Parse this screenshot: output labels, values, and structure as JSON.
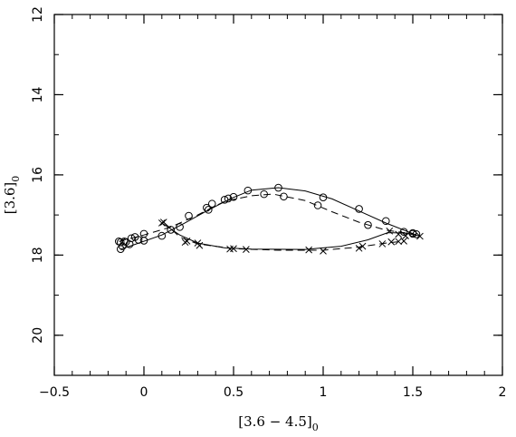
{
  "chart_data": {
    "type": "line",
    "title": "",
    "xlabel": "[3.6 − 4.5]",
    "xlabel_sub": "0",
    "ylabel": "[3.6]",
    "ylabel_sub": "0",
    "xlim": [
      -0.5,
      2
    ],
    "ylim": [
      21,
      12
    ],
    "y_inverted": true,
    "x_ticks_major": [
      -0.5,
      0,
      0.5,
      1,
      1.5,
      2
    ],
    "x_tick_labels": [
      "−0.5",
      "0",
      "0.5",
      "1",
      "1.5",
      "2"
    ],
    "y_ticks_major": [
      12,
      14,
      16,
      18,
      20
    ],
    "y_tick_labels": [
      "12",
      "14",
      "16",
      "18",
      "20"
    ],
    "x_ticks_minor_step": 0.1,
    "y_ticks_minor_step": 1,
    "grid": false,
    "series": [
      {
        "marker": "circle",
        "line_style": "solid",
        "points": [
          [
            -0.13,
            17.85
          ],
          [
            -0.12,
            17.78
          ],
          [
            -0.08,
            17.73
          ],
          [
            -0.07,
            17.58
          ],
          [
            -0.03,
            17.62
          ],
          [
            0.0,
            17.64
          ],
          [
            0.1,
            17.52
          ],
          [
            0.2,
            17.3
          ],
          [
            0.25,
            17.02
          ],
          [
            0.35,
            16.82
          ],
          [
            0.38,
            16.72
          ],
          [
            0.47,
            16.59
          ],
          [
            0.5,
            16.55
          ],
          [
            0.58,
            16.39
          ],
          [
            0.75,
            16.32
          ],
          [
            1.0,
            16.56
          ],
          [
            1.2,
            16.85
          ],
          [
            1.35,
            17.15
          ],
          [
            1.5,
            17.45
          ],
          [
            1.52,
            17.48
          ]
        ],
        "line": [
          [
            -0.13,
            17.85
          ],
          [
            -0.08,
            17.78
          ],
          [
            0.1,
            17.5
          ],
          [
            0.22,
            17.22
          ],
          [
            0.35,
            16.9
          ],
          [
            0.48,
            16.6
          ],
          [
            0.6,
            16.38
          ],
          [
            0.75,
            16.32
          ],
          [
            0.9,
            16.4
          ],
          [
            1.05,
            16.6
          ],
          [
            1.2,
            16.9
          ],
          [
            1.35,
            17.2
          ],
          [
            1.52,
            17.5
          ]
        ]
      },
      {
        "marker": "circle",
        "line_style": "dashed",
        "points": [
          [
            -0.14,
            17.66
          ],
          [
            -0.13,
            17.68
          ],
          [
            -0.11,
            17.66
          ],
          [
            -0.1,
            17.67
          ],
          [
            -0.05,
            17.55
          ],
          [
            0.0,
            17.47
          ],
          [
            0.15,
            17.37
          ],
          [
            0.36,
            16.87
          ],
          [
            0.45,
            16.62
          ],
          [
            0.67,
            16.48
          ],
          [
            0.78,
            16.54
          ],
          [
            0.97,
            16.76
          ],
          [
            1.25,
            17.25
          ],
          [
            1.45,
            17.42
          ],
          [
            1.5,
            17.47
          ]
        ],
        "line": [
          [
            -0.14,
            17.66
          ],
          [
            0.0,
            17.5
          ],
          [
            0.15,
            17.3
          ],
          [
            0.3,
            17.0
          ],
          [
            0.45,
            16.66
          ],
          [
            0.6,
            16.52
          ],
          [
            0.72,
            16.48
          ],
          [
            0.9,
            16.64
          ],
          [
            1.05,
            16.92
          ],
          [
            1.2,
            17.18
          ],
          [
            1.35,
            17.38
          ],
          [
            1.5,
            17.47
          ]
        ]
      },
      {
        "marker": "cross",
        "line_style": "solid",
        "points": [
          [
            0.1,
            17.2
          ],
          [
            0.24,
            17.65
          ],
          [
            0.31,
            17.76
          ],
          [
            0.48,
            17.85
          ],
          [
            0.57,
            17.86
          ],
          [
            0.92,
            17.87
          ],
          [
            1.2,
            17.83
          ],
          [
            1.33,
            17.72
          ],
          [
            1.37,
            17.4
          ],
          [
            1.42,
            17.48
          ],
          [
            1.46,
            17.52
          ],
          [
            1.54,
            17.53
          ]
        ],
        "line": [
          [
            0.1,
            17.2
          ],
          [
            0.2,
            17.5
          ],
          [
            0.3,
            17.7
          ],
          [
            0.45,
            17.82
          ],
          [
            0.6,
            17.85
          ],
          [
            0.9,
            17.86
          ],
          [
            1.1,
            17.78
          ],
          [
            1.25,
            17.62
          ],
          [
            1.36,
            17.44
          ],
          [
            1.45,
            17.45
          ],
          [
            1.54,
            17.52
          ]
        ]
      },
      {
        "marker": "cross",
        "line_style": "dashed",
        "points": [
          [
            0.11,
            17.18
          ],
          [
            0.23,
            17.68
          ],
          [
            0.3,
            17.7
          ],
          [
            0.5,
            17.84
          ],
          [
            1.0,
            17.9
          ],
          [
            1.22,
            17.78
          ],
          [
            1.38,
            17.67
          ],
          [
            1.42,
            17.66
          ],
          [
            1.45,
            17.65
          ]
        ],
        "line": [
          [
            0.11,
            17.18
          ],
          [
            0.2,
            17.55
          ],
          [
            0.3,
            17.72
          ],
          [
            0.5,
            17.84
          ],
          [
            0.75,
            17.88
          ],
          [
            1.0,
            17.88
          ],
          [
            1.2,
            17.8
          ],
          [
            1.35,
            17.7
          ],
          [
            1.45,
            17.65
          ]
        ]
      }
    ]
  }
}
